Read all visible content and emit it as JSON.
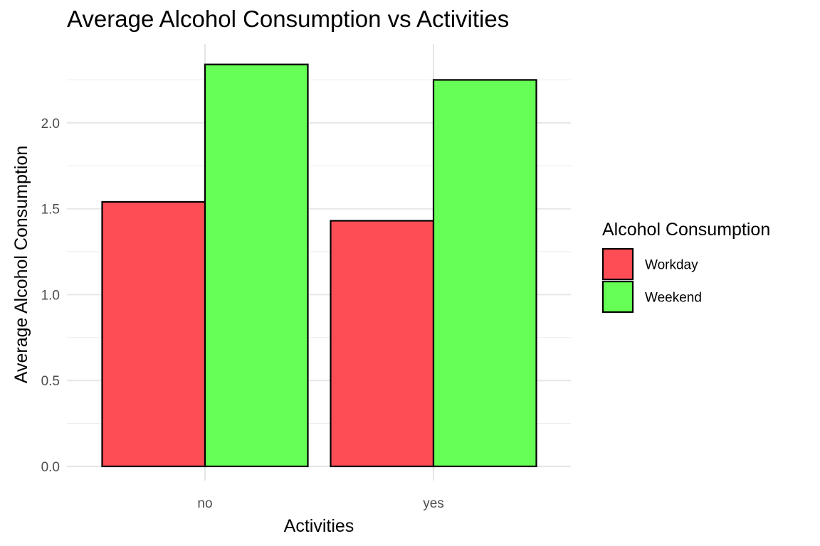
{
  "chart_data": {
    "type": "bar",
    "title": "Average Alcohol Consumption vs Activities",
    "xlabel": "Activities",
    "ylabel": "Average Alcohol Consumption",
    "categories": [
      "no",
      "yes"
    ],
    "series": [
      {
        "name": "Workday",
        "values": [
          1.54,
          1.43
        ],
        "color": "#ff4d55"
      },
      {
        "name": "Weekend",
        "values": [
          2.34,
          2.25
        ],
        "color": "#66ff55"
      }
    ],
    "ylim": [
      0,
      2.4
    ],
    "yticks": [
      "0.0",
      "0.5",
      "1.0",
      "1.5",
      "2.0"
    ],
    "grid": true,
    "legend": {
      "title": "Alcohol Consumption",
      "position": "right"
    }
  }
}
